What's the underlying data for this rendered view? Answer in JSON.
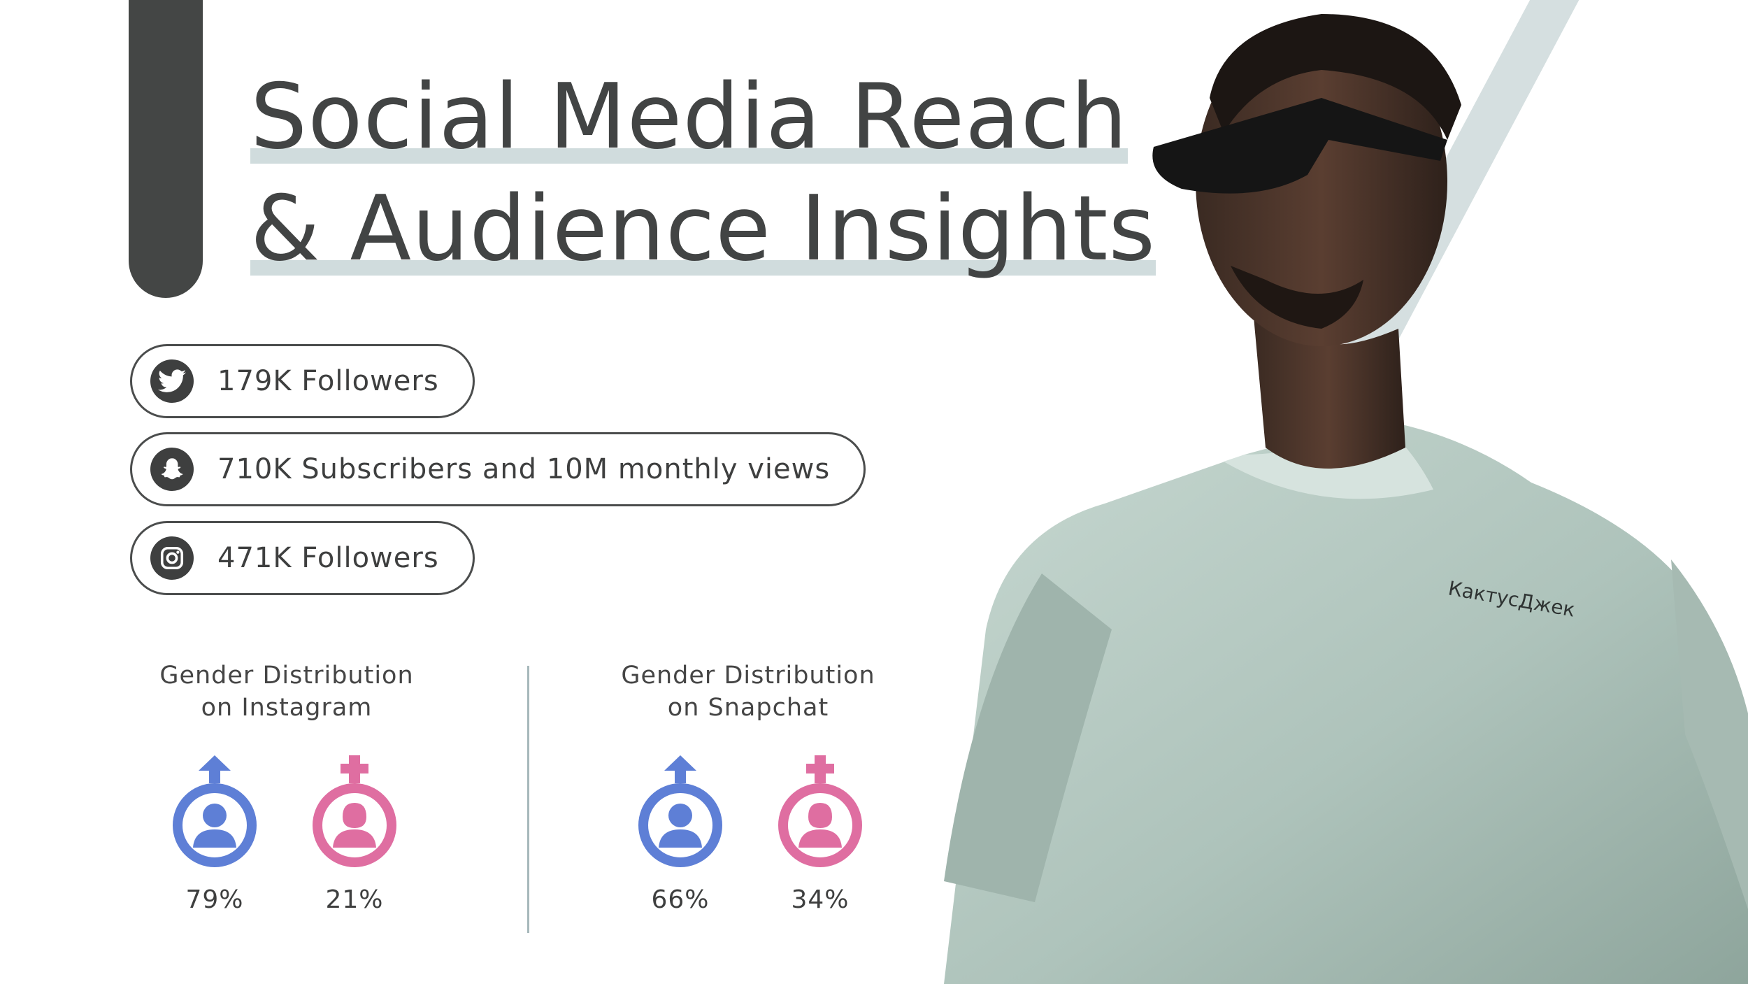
{
  "title": {
    "line1": "Social Media Reach",
    "line2": "& Audience Insights"
  },
  "stats": [
    {
      "icon": "twitter-icon",
      "text": "179K Followers"
    },
    {
      "icon": "snapchat-icon",
      "text": "710K Subscribers and 10M monthly views"
    },
    {
      "icon": "instagram-icon",
      "text": "471K Followers"
    }
  ],
  "distributions": [
    {
      "title_line1": "Gender Distribution",
      "title_line2": "on Instagram",
      "male_pct": "79%",
      "female_pct": "21%"
    },
    {
      "title_line1": "Gender Distribution",
      "title_line2": "on Snapchat",
      "male_pct": "66%",
      "female_pct": "34%"
    }
  ],
  "shirt_text": "КактусДжек",
  "colors": {
    "dark": "#424444",
    "highlight": "#d0dcdd",
    "male": "#5e7fd6",
    "female": "#df6ea1",
    "shirt": "#b8cbc4"
  }
}
